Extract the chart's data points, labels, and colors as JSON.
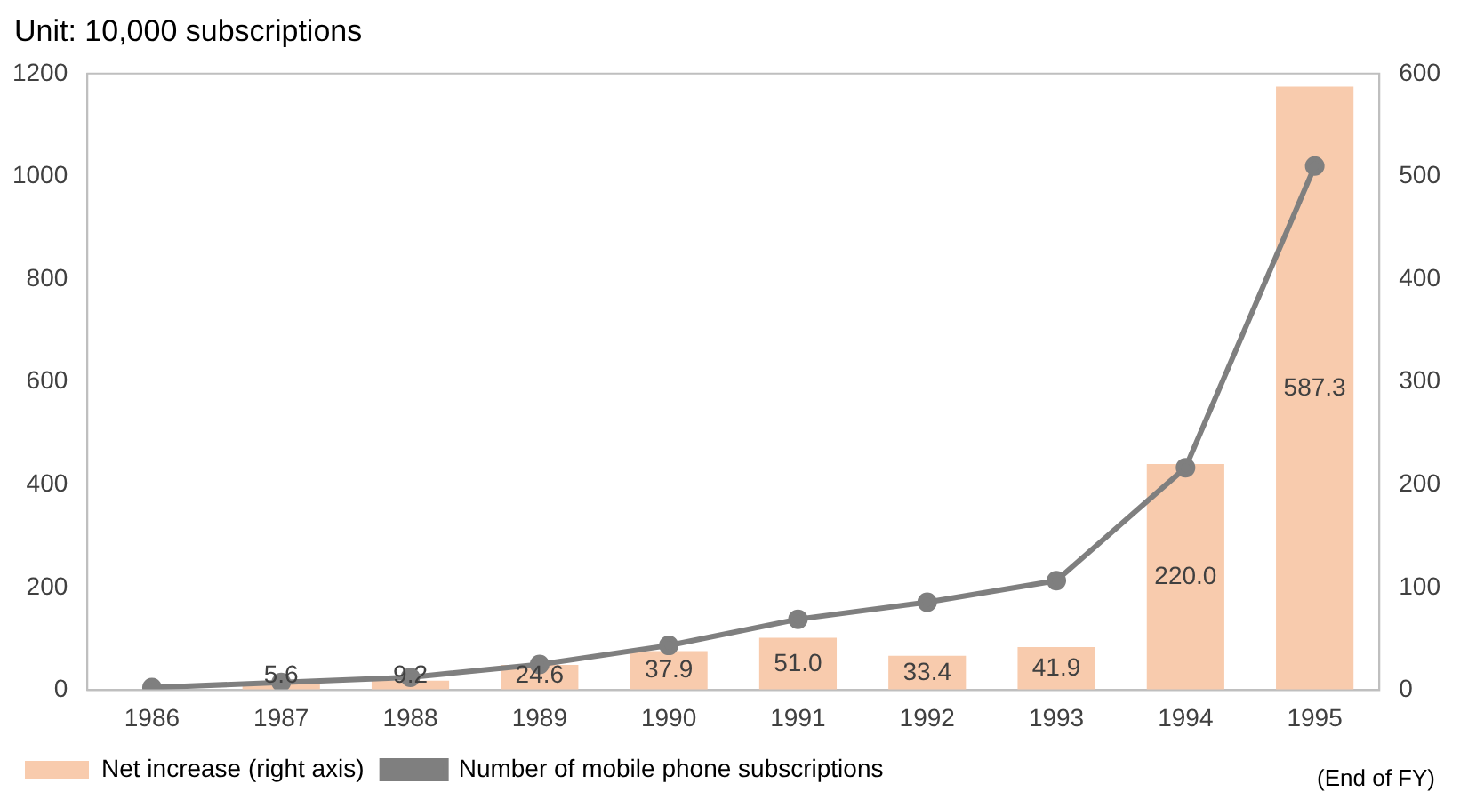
{
  "chart_data": {
    "type": "bar",
    "title": "Unit: 10,000 subscriptions",
    "categories": [
      "1986",
      "1987",
      "1988",
      "1989",
      "1990",
      "1991",
      "1992",
      "1993",
      "1994",
      "1995"
    ],
    "series": [
      {
        "name": "Net increase (right axis)",
        "axis": "y2",
        "color": "#f8cbad",
        "values": [
          null,
          5.6,
          9.2,
          24.6,
          37.9,
          51.0,
          33.4,
          41.9,
          220.0,
          587.3
        ],
        "value_labels": [
          null,
          "5.6",
          "9.2",
          "24.6",
          "37.9",
          "51.0",
          "33.4",
          "41.9",
          "220.0",
          "587.3"
        ]
      },
      {
        "name": "Number of mobile phone subscriptions",
        "type": "line",
        "axis": "y",
        "color": "#7f7f7f",
        "values": [
          5,
          15,
          25,
          50,
          87,
          138,
          171,
          213,
          433,
          1020
        ]
      }
    ],
    "ylim": [
      0,
      1200
    ],
    "yticks": [
      0,
      200,
      400,
      600,
      800,
      1000,
      1200
    ],
    "y2lim": [
      0,
      600
    ],
    "y2ticks": [
      0,
      100,
      200,
      300,
      400,
      500,
      600
    ],
    "grid": false,
    "legend": "bottom",
    "marker": "circle",
    "line_style": "solid",
    "annotations": [
      "(End of FY)"
    ]
  }
}
